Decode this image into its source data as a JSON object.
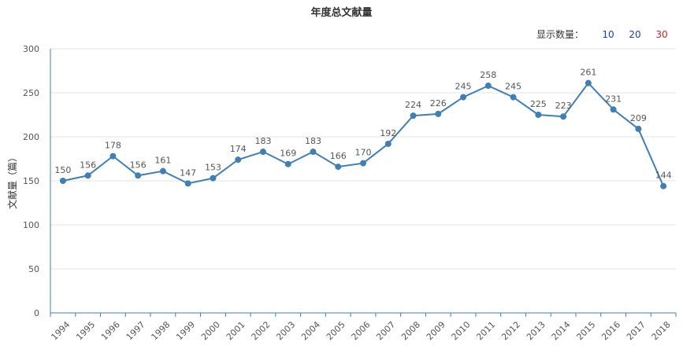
{
  "header": {
    "title": "年度总文献量"
  },
  "count_selector": {
    "label": "显示数量：",
    "options": [
      {
        "label": "10",
        "color": "#1a3ccc"
      },
      {
        "label": "20",
        "color": "#1a3ccc"
      },
      {
        "label": "30",
        "color": "#e02020"
      }
    ]
  },
  "chart_data": {
    "type": "line",
    "title": "年度总文献量",
    "xlabel": "",
    "ylabel": "文献量（篇）",
    "ylim": [
      0,
      300
    ],
    "yticks": [
      0,
      50,
      100,
      150,
      200,
      250,
      300
    ],
    "grid": true,
    "line_color": "#3f7fb5",
    "categories": [
      "1994",
      "1995",
      "1996",
      "1997",
      "1998",
      "1999",
      "2000",
      "2001",
      "2002",
      "2003",
      "2004",
      "2005",
      "2006",
      "2007",
      "2008",
      "2009",
      "2010",
      "2011",
      "2012",
      "2013",
      "2014",
      "2015",
      "2016",
      "2017",
      "2018"
    ],
    "values": [
      150,
      156,
      178,
      156,
      161,
      147,
      153,
      174,
      183,
      169,
      183,
      166,
      170,
      192,
      224,
      226,
      245,
      258,
      245,
      225,
      223,
      261,
      231,
      209,
      144
    ]
  }
}
